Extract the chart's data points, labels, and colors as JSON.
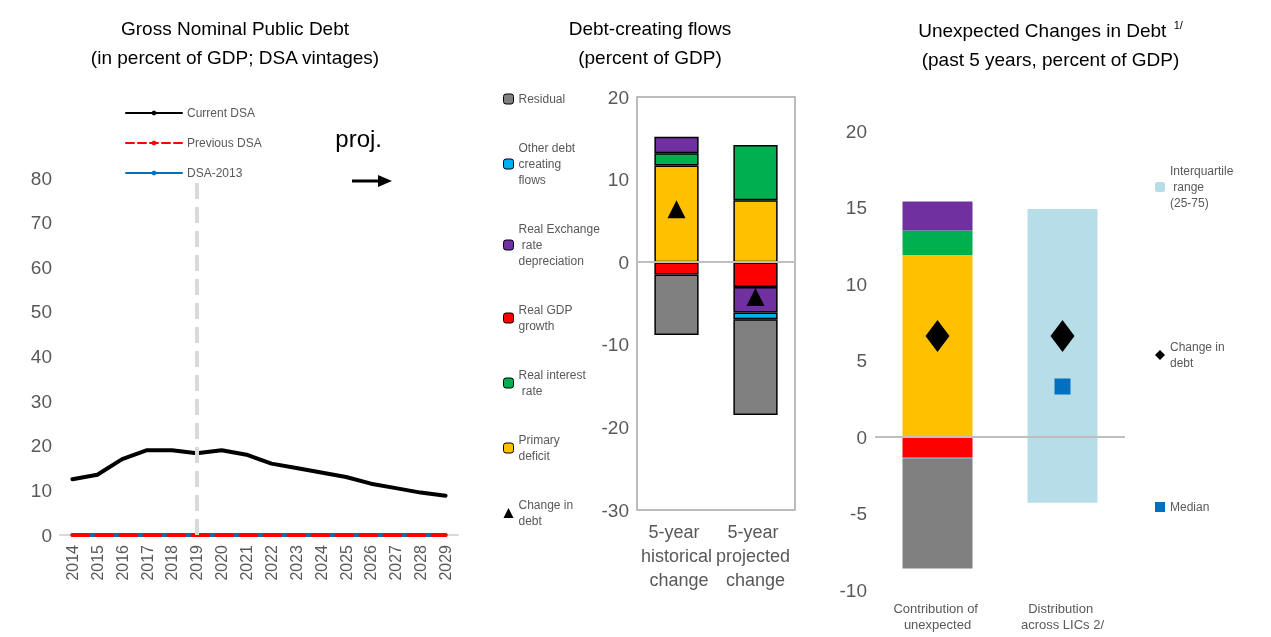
{
  "chart_data": [
    {
      "type": "line",
      "title": "Gross Nominal Public Debt",
      "subtitle": "(in percent of GDP; DSA vintages)",
      "categories": [
        "2014",
        "2015",
        "2016",
        "2017",
        "2018",
        "2019",
        "2020",
        "2021",
        "2022",
        "2023",
        "2024",
        "2025",
        "2026",
        "2027",
        "2028",
        "2029"
      ],
      "series": [
        {
          "name": "Current DSA",
          "color": "#000000",
          "values": [
            12.5,
            13.5,
            17,
            19,
            19,
            18.3,
            19,
            18,
            16,
            15,
            14,
            13,
            11.5,
            10.5,
            9.5,
            8.8
          ]
        },
        {
          "name": "Previous DSA",
          "color": "#ff0000",
          "line_style": "dashed",
          "values": [
            0,
            0,
            0,
            0,
            0,
            0,
            0,
            0,
            0,
            0,
            0,
            0,
            0,
            0,
            0,
            0
          ]
        },
        {
          "name": "DSA-2013",
          "color": "#0070c0",
          "values": [
            0,
            0,
            0,
            0,
            0,
            0,
            0,
            0,
            0,
            0,
            0,
            0,
            0,
            0,
            0,
            0
          ]
        }
      ],
      "ylim": [
        0,
        80
      ],
      "yticks": [
        0,
        10,
        20,
        30,
        40,
        50,
        60,
        70,
        80
      ],
      "grid": false,
      "legend": "top",
      "marker": "none",
      "line_style": "solid",
      "ref_lines": [
        {
          "axis": "x",
          "value": "2019",
          "color": "#d9d9d9",
          "line_style": "dashed"
        }
      ],
      "annotations": [
        "proj."
      ]
    },
    {
      "type": "bar",
      "title": "Debt-creating flows",
      "subtitle": "(percent of GDP)",
      "stacked": true,
      "categories": [
        "5-year historical change",
        "5-year projected change"
      ],
      "series": [
        {
          "name": "Primary deficit",
          "color": "#ffc000",
          "values": [
            11.7,
            7.5
          ]
        },
        {
          "name": "Real interest rate",
          "color": "#00b050",
          "values": [
            1.5,
            6.7
          ]
        },
        {
          "name": "Real GDP growth",
          "color": "#ff0000",
          "values": [
            -1.5,
            -3.0
          ]
        },
        {
          "name": "Real Exchange rate depreciation",
          "color": "#7030a0",
          "values": [
            2.0,
            -3.1
          ]
        },
        {
          "name": "Other debt creating flows",
          "color": "#00b0f0",
          "values": [
            null,
            -0.8
          ]
        },
        {
          "name": "Residual",
          "color": "#808080",
          "values": [
            -7.3,
            -11.6
          ]
        },
        {
          "type": "scatter",
          "name": "Change in debt",
          "color": "#000000",
          "marker": "triangle",
          "x": [
            "5-year historical change",
            "5-year projected change"
          ],
          "values": [
            6.4,
            -4.2
          ]
        }
      ],
      "ylim": [
        -30,
        20
      ],
      "yticks": [
        -30,
        -20,
        -10,
        0,
        10,
        20
      ],
      "grid": false,
      "legend": "left",
      "ref_lines": [
        {
          "axis": "y",
          "value": 0,
          "color": "#bfbfbf"
        }
      ]
    },
    {
      "type": "bar",
      "title": "Unexpected Changes in Debt $^{1/}$",
      "subtitle": "(past 5 years, percent of GDP)",
      "stacked": true,
      "categories": [
        "Contribution of unexpected",
        "Distribution across LICs 2/"
      ],
      "series": [
        {
          "color": "#ffc000",
          "values": [
            11.9,
            null
          ]
        },
        {
          "color": "#00b050",
          "values": [
            1.6,
            null
          ]
        },
        {
          "color": "#ff0000",
          "values": [
            -1.3,
            null
          ]
        },
        {
          "color": "#7030a0",
          "values": [
            1.9,
            null
          ]
        },
        {
          "color": "#00b0f0",
          "values": [
            -0.1,
            null
          ]
        },
        {
          "color": "#808080",
          "values": [
            -7.2,
            null
          ]
        },
        {
          "name": "Interquartile range (25-75)",
          "color": "#b7dee8",
          "values": [
            null,
            19.2
          ],
          "base": [
            null,
            -4.3
          ]
        },
        {
          "type": "scatter",
          "name": "Change in debt",
          "color": "#000000",
          "marker": "diamond",
          "x": [
            "Contribution of unexpected",
            "Distribution across LICs 2/"
          ],
          "values": [
            6.6,
            6.6
          ]
        },
        {
          "type": "scatter",
          "name": "Median",
          "color": "#0070c0",
          "marker": "square",
          "x": [
            "Distribution across LICs 2/"
          ],
          "values": [
            3.3
          ]
        }
      ],
      "ylim": [
        -10,
        20
      ],
      "yticks": [
        -10,
        -5,
        0,
        5,
        10,
        15,
        20
      ],
      "grid": false,
      "legend": "right",
      "ref_lines": [
        {
          "axis": "y",
          "value": 0,
          "color": "#bfbfbf"
        }
      ]
    }
  ]
}
